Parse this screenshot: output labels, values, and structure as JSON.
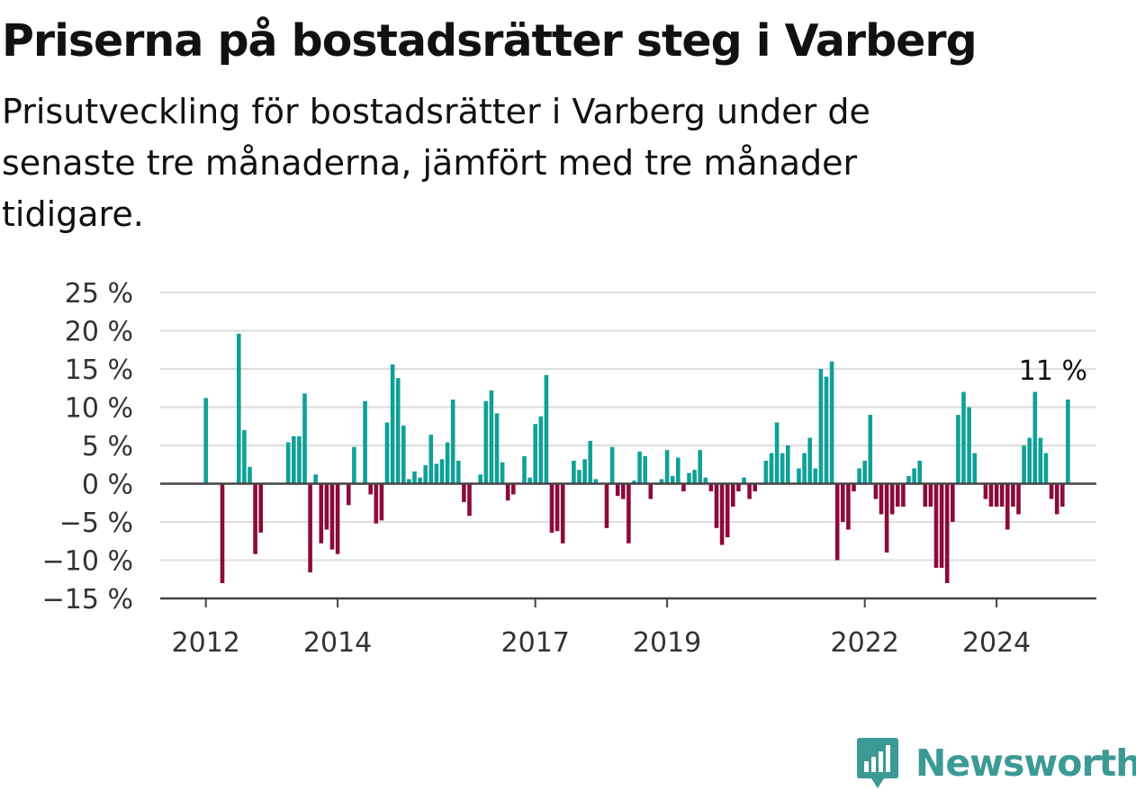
{
  "header": {
    "title": "Priserna på bostadsrätter steg i Varberg",
    "subtitle": "Prisutveckling för bostadsrätter i Varberg under de senaste tre månaderna, jämfört med tre månader tidigare."
  },
  "branding": {
    "logo_text": "Newsworthy",
    "logo_color": "#3c9a95"
  },
  "colors": {
    "positive": "#0fa197",
    "negative": "#8c0a3c",
    "grid": "#dddddd",
    "axis": "#444444"
  },
  "chart_data": {
    "type": "bar",
    "ylim": [
      -15,
      25
    ],
    "yticks": [
      25,
      20,
      15,
      10,
      5,
      0,
      -5,
      -10,
      -15
    ],
    "ytick_labels": [
      "25 %",
      "20 %",
      "15 %",
      "10 %",
      "5 %",
      "0 %",
      "−5 %",
      "−10 %",
      "−15 %"
    ],
    "xtick_labels": [
      "2012",
      "2014",
      "2017",
      "2019",
      "2022",
      "2024"
    ],
    "xtick_index": [
      0,
      24,
      60,
      84,
      120,
      144
    ],
    "grid": true,
    "annotation": {
      "text": "11 %",
      "index": 154
    },
    "values": [
      11.2,
      null,
      null,
      -13,
      null,
      null,
      19.6,
      7,
      2.2,
      -9.2,
      -6.4,
      null,
      null,
      null,
      null,
      5.4,
      6.2,
      6.2,
      11.8,
      -11.6,
      1.2,
      -7.8,
      -6,
      -8.6,
      -9.2,
      null,
      -2.8,
      4.8,
      null,
      10.8,
      -1.4,
      -5.2,
      -4.8,
      8,
      15.6,
      13.8,
      7.6,
      0.6,
      1.6,
      0.8,
      2.4,
      6.4,
      2.6,
      3.2,
      5.4,
      11,
      3,
      -2.4,
      -4.2,
      null,
      1.2,
      10.8,
      12.2,
      9.2,
      2.8,
      -2.2,
      -1.4,
      null,
      3.6,
      0.8,
      7.8,
      8.8,
      14.2,
      -6.4,
      -6.2,
      -7.8,
      null,
      3,
      1.8,
      3.2,
      5.6,
      0.6,
      null,
      -5.8,
      4.8,
      -1.6,
      -2,
      -7.8,
      0.4,
      4.2,
      3.6,
      -2,
      null,
      0.6,
      4.4,
      1,
      3.4,
      -1,
      1.4,
      1.8,
      4.4,
      0.8,
      -1,
      -5.8,
      -8,
      -7,
      -3,
      -1,
      0.8,
      -2,
      -1,
      null,
      3,
      4,
      8,
      4,
      5,
      null,
      2,
      4,
      6,
      2,
      15,
      14,
      16,
      -10,
      -5,
      -6,
      -1,
      2,
      3,
      9,
      -2,
      -4,
      -9,
      -4,
      -3,
      -3,
      1,
      2,
      3,
      -3,
      -3,
      -11,
      -11,
      -13,
      -5,
      9,
      12,
      10,
      4,
      null,
      -2,
      -3,
      -3,
      -3,
      -6,
      -3,
      -4,
      5,
      6,
      12,
      6,
      4,
      -2,
      -4,
      -3,
      11
    ]
  }
}
